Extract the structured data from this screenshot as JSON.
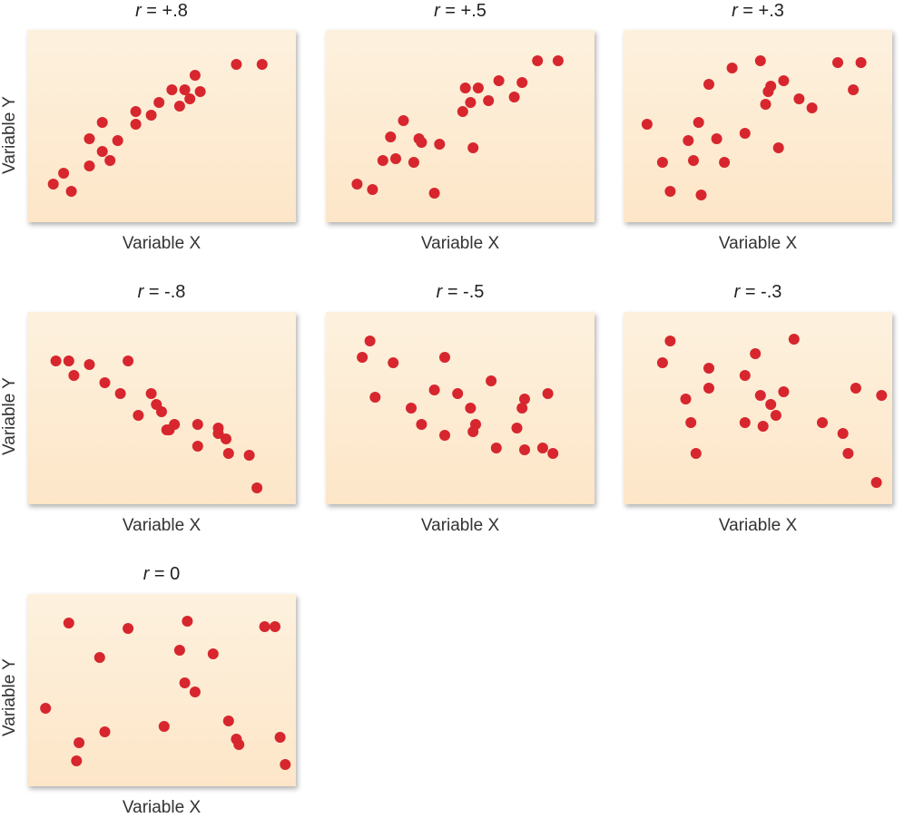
{
  "colors": {
    "dot": "#d7262e",
    "panel_top": "#fdf1de",
    "panel_bottom": "#fde6c8"
  },
  "chart_data": [
    {
      "type": "scatter",
      "title_symbol": "r",
      "title_value": " = +.8",
      "xlabel": "Variable X",
      "ylabel": "Variable Y",
      "xlim": [
        0,
        100
      ],
      "ylim": [
        0,
        100
      ],
      "x": [
        8,
        12,
        15,
        22,
        22,
        27,
        27,
        30,
        33,
        40,
        40,
        46,
        49,
        54,
        57,
        59,
        61,
        63,
        65,
        79,
        89
      ],
      "y": [
        18,
        24,
        14,
        28,
        43,
        36,
        52,
        31,
        42,
        51,
        58,
        56,
        63,
        70,
        61,
        70,
        65,
        78,
        69,
        84,
        84
      ]
    },
    {
      "type": "scatter",
      "title_symbol": "r",
      "title_value": " = +.5",
      "xlabel": "Variable X",
      "ylabel": "",
      "xlim": [
        0,
        100
      ],
      "ylim": [
        0,
        100
      ],
      "x": [
        10,
        16,
        20,
        23,
        25,
        28,
        32,
        34,
        35,
        40,
        42,
        51,
        52,
        54,
        55,
        57,
        61,
        65,
        71,
        74,
        80,
        88
      ],
      "y": [
        18,
        15,
        31,
        44,
        32,
        53,
        30,
        43,
        41,
        13,
        40,
        58,
        71,
        63,
        38,
        71,
        64,
        75,
        66,
        74,
        86,
        86
      ]
    },
    {
      "type": "scatter",
      "title_symbol": "r",
      "title_value": " = +.3",
      "xlabel": "Variable X",
      "ylabel": "",
      "xlim": [
        0,
        100
      ],
      "ylim": [
        0,
        100
      ],
      "x": [
        7,
        13,
        16,
        23,
        25,
        27,
        28,
        31,
        34,
        37,
        40,
        45,
        51,
        53,
        54,
        55,
        58,
        60,
        66,
        71,
        81,
        87,
        90
      ],
      "y": [
        51,
        30,
        14,
        42,
        31,
        52,
        12,
        73,
        43,
        30,
        82,
        46,
        86,
        62,
        69,
        72,
        38,
        75,
        65,
        60,
        85,
        70,
        85
      ]
    },
    {
      "type": "scatter",
      "title_symbol": "r",
      "title_value": " = -.8",
      "xlabel": "Variable X",
      "ylabel": "Variable Y",
      "xlim": [
        0,
        100
      ],
      "ylim": [
        0,
        100
      ],
      "x": [
        9,
        14,
        16,
        22,
        28,
        34,
        37,
        41,
        46,
        48,
        50,
        52,
        53,
        55,
        64,
        64,
        72,
        72,
        75,
        76,
        84,
        87
      ],
      "y": [
        76,
        76,
        68,
        74,
        64,
        58,
        76,
        46,
        58,
        52,
        48,
        38,
        38,
        41,
        29,
        41,
        39,
        36,
        33,
        25,
        24,
        6
      ]
    },
    {
      "type": "scatter",
      "title_symbol": "r",
      "title_value": " = -.5",
      "xlabel": "Variable X",
      "ylabel": "",
      "xlim": [
        0,
        100
      ],
      "ylim": [
        0,
        100
      ],
      "x": [
        12,
        15,
        17,
        24,
        31,
        35,
        40,
        44,
        44,
        49,
        54,
        55,
        56,
        62,
        64,
        72,
        74,
        75,
        75,
        82,
        84,
        86
      ],
      "y": [
        78,
        87,
        56,
        75,
        50,
        41,
        60,
        35,
        78,
        58,
        50,
        37,
        41,
        65,
        28,
        39,
        50,
        55,
        27,
        28,
        58,
        25
      ]
    },
    {
      "type": "scatter",
      "title_symbol": "r",
      "title_value": " = -.3",
      "xlabel": "Variable X",
      "ylabel": "",
      "xlim": [
        0,
        100
      ],
      "ylim": [
        0,
        100
      ],
      "x": [
        13,
        16,
        22,
        24,
        26,
        31,
        31,
        45,
        45,
        49,
        51,
        52,
        55,
        57,
        60,
        64,
        75,
        83,
        85,
        88,
        96,
        98
      ],
      "y": [
        75,
        87,
        55,
        42,
        25,
        61,
        72,
        42,
        68,
        80,
        57,
        40,
        52,
        46,
        59,
        88,
        42,
        36,
        25,
        61,
        9,
        57
      ]
    },
    {
      "type": "scatter",
      "title_symbol": "r",
      "title_value": " = 0",
      "xlabel": "Variable X",
      "ylabel": "Variable Y",
      "xlim": [
        0,
        100
      ],
      "ylim": [
        0,
        100
      ],
      "x": [
        5,
        14,
        17,
        18,
        26,
        28,
        37,
        51,
        57,
        59,
        60,
        63,
        70,
        76,
        79,
        80,
        90,
        94,
        96,
        98
      ],
      "y": [
        40,
        87,
        11,
        21,
        68,
        27,
        84,
        30,
        72,
        54,
        88,
        49,
        70,
        33,
        23,
        20,
        85,
        85,
        24,
        9
      ]
    }
  ]
}
